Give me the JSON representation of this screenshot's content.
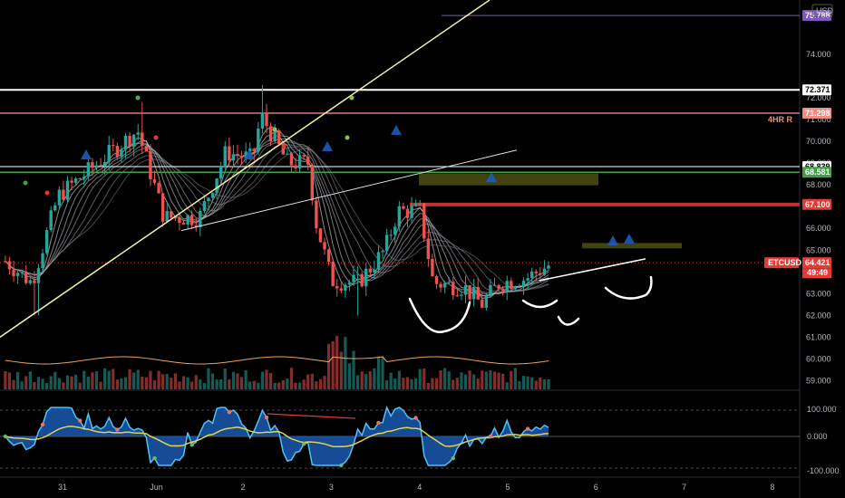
{
  "symbol": "ETCUSD",
  "currency": "USD",
  "countdown": "49:49",
  "colors": {
    "bg": "#000000",
    "grid": "#131722",
    "up": "#26a69a",
    "down": "#ef5350",
    "white_line": "#ffffff",
    "yellow_line": "#f5f1a6",
    "purple": "#7e57c2",
    "red_tag": "#e53935",
    "green_tag": "#43a047",
    "pink": "#f28b82"
  },
  "price_axis": {
    "ticks": [
      "74.000",
      "72.000",
      "71.000",
      "70.000",
      "69.000",
      "68.000",
      "67.000",
      "66.000",
      "65.000",
      "64.000",
      "63.000",
      "62.000",
      "61.000",
      "60.000",
      "59.000"
    ]
  },
  "price_tags": [
    {
      "label": "75.788",
      "price": 75.788,
      "color": "#7e57c2"
    },
    {
      "label": "72.371",
      "price": 72.371,
      "color": "#ffffff"
    },
    {
      "label": "71.298",
      "price": 71.298,
      "color": "#f28b82"
    },
    {
      "label": "68.839",
      "price": 68.839,
      "color": "#ffffff"
    },
    {
      "label": "68.581",
      "price": 68.581,
      "color": "#43a047"
    },
    {
      "label": "67.100",
      "price": 67.1,
      "color": "#e53935"
    },
    {
      "label": "64.421",
      "price": 64.421,
      "color": "#e53935"
    }
  ],
  "annotation": {
    "text": "4HR R",
    "price": 71.0
  },
  "osc_axis": {
    "ticks": [
      "100.000",
      "0.000",
      "-100.000"
    ]
  },
  "x_axis": {
    "labels": [
      "31",
      "Jun",
      "2",
      "3",
      "4",
      "5",
      "6",
      "7",
      "8"
    ]
  },
  "chart_data": {
    "type": "candlestick",
    "symbol": "ETCUSD",
    "interval_note": "intraday candles with volume and oscillator panes",
    "x_labels": [
      "31",
      "Jun",
      "2",
      "3",
      "4",
      "5",
      "6",
      "7",
      "8"
    ],
    "ylim": [
      58.6,
      76.5
    ],
    "levels": {
      "purple": 75.788,
      "white_top": 72.371,
      "pink_4hr_r": 71.298,
      "white_mid": 68.839,
      "green": 68.581,
      "red": 67.1,
      "last_price": 64.421
    },
    "price_path": [
      {
        "day": 30.3,
        "price": 64.5
      },
      {
        "day": 30.6,
        "price": 63.5
      },
      {
        "day": 30.9,
        "price": 67.5
      },
      {
        "day": 31.5,
        "price": 69.5
      },
      {
        "day": 31.8,
        "price": 70.5
      },
      {
        "day": 32.1,
        "price": 66.5
      },
      {
        "day": 32.5,
        "price": 66.5
      },
      {
        "day": 32.8,
        "price": 69.5
      },
      {
        "day": 33.1,
        "price": 69.2
      },
      {
        "day": 33.2,
        "price": 71.2
      },
      {
        "day": 33.5,
        "price": 69.0
      },
      {
        "day": 33.75,
        "price": 69.0
      },
      {
        "day": 33.8,
        "price": 66.6
      },
      {
        "day": 34.0,
        "price": 63.6
      },
      {
        "day": 34.3,
        "price": 63.5
      },
      {
        "day": 34.6,
        "price": 65.0
      },
      {
        "day": 34.75,
        "price": 66.8
      },
      {
        "day": 35.0,
        "price": 66.8
      },
      {
        "day": 35.15,
        "price": 63.5
      },
      {
        "day": 35.5,
        "price": 63.3
      },
      {
        "day": 35.7,
        "price": 62.5
      },
      {
        "day": 35.9,
        "price": 63.5
      },
      {
        "day": 36.2,
        "price": 63.7
      },
      {
        "day": 36.5,
        "price": 64.4
      }
    ],
    "volume": {
      "note": "volume histogram bars along bottom of price pane"
    },
    "oscillator": {
      "ylim": [
        -100,
        100
      ],
      "ticks": [
        100,
        0,
        -100
      ]
    }
  }
}
